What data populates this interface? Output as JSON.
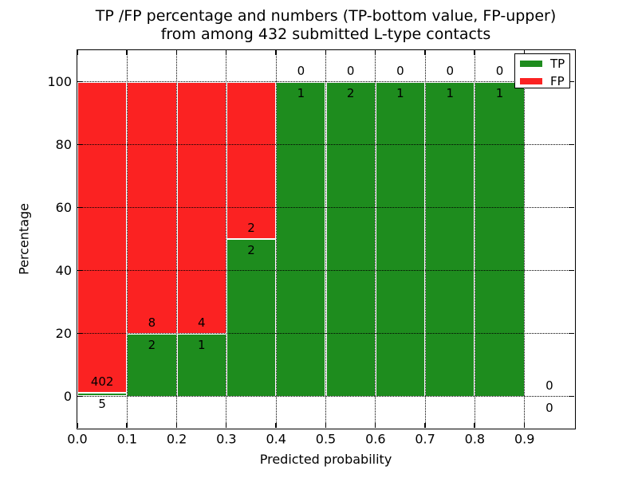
{
  "chart_data": {
    "type": "bar",
    "variant": "stacked-percentage-histogram",
    "title_line1": "TP /FP percentage and numbers (TP-bottom value, FP-upper)",
    "title_line2": "from among 432 submitted L-type contacts",
    "xlabel": "Predicted probability",
    "ylabel": "Percentage",
    "xlim": [
      0.0,
      1.0
    ],
    "ylim": [
      -10,
      110
    ],
    "grid": "dotted black, over bars",
    "x_ticks": [
      {
        "value": 0.0,
        "label": "0.0"
      },
      {
        "value": 0.1,
        "label": "0.1"
      },
      {
        "value": 0.2,
        "label": "0.2"
      },
      {
        "value": 0.3,
        "label": "0.3"
      },
      {
        "value": 0.4,
        "label": "0.4"
      },
      {
        "value": 0.5,
        "label": "0.5"
      },
      {
        "value": 0.6,
        "label": "0.6"
      },
      {
        "value": 0.7,
        "label": "0.7"
      },
      {
        "value": 0.8,
        "label": "0.8"
      },
      {
        "value": 0.9,
        "label": "0.9"
      }
    ],
    "y_ticks": [
      {
        "value": 0,
        "label": "0"
      },
      {
        "value": 20,
        "label": "20"
      },
      {
        "value": 40,
        "label": "40"
      },
      {
        "value": 60,
        "label": "60"
      },
      {
        "value": 80,
        "label": "80"
      },
      {
        "value": 100,
        "label": "100"
      }
    ],
    "legend": {
      "position": "upper right",
      "entries": [
        {
          "label": "TP",
          "color": "#1e8c1e"
        },
        {
          "label": "FP",
          "color": "#fb2222"
        }
      ]
    },
    "colors": {
      "tp": "#1e8c1e",
      "fp": "#fb2222",
      "background": "#ffffff",
      "grid": "#000000",
      "bar_edge": "#ffffff"
    },
    "total_contacts": 432,
    "bins": [
      {
        "x0": 0.0,
        "x1": 0.1,
        "tp": 5,
        "fp": 402,
        "tp_percent": 1.2
      },
      {
        "x0": 0.1,
        "x1": 0.2,
        "tp": 2,
        "fp": 8,
        "tp_percent": 20
      },
      {
        "x0": 0.2,
        "x1": 0.3,
        "tp": 1,
        "fp": 4,
        "tp_percent": 20
      },
      {
        "x0": 0.3,
        "x1": 0.4,
        "tp": 2,
        "fp": 2,
        "tp_percent": 50
      },
      {
        "x0": 0.4,
        "x1": 0.5,
        "tp": 1,
        "fp": 0,
        "tp_percent": 100
      },
      {
        "x0": 0.5,
        "x1": 0.6,
        "tp": 2,
        "fp": 0,
        "tp_percent": 100
      },
      {
        "x0": 0.6,
        "x1": 0.7,
        "tp": 1,
        "fp": 0,
        "tp_percent": 100
      },
      {
        "x0": 0.7,
        "x1": 0.8,
        "tp": 1,
        "fp": 0,
        "tp_percent": 100
      },
      {
        "x0": 0.8,
        "x1": 0.9,
        "tp": 1,
        "fp": 0,
        "tp_percent": 100
      },
      {
        "x0": 0.9,
        "x1": 1.0,
        "tp": 0,
        "fp": 0,
        "tp_percent": 0
      }
    ],
    "annotation_rule": "FP count above TP-bar top, TP count below TP-bar top"
  }
}
